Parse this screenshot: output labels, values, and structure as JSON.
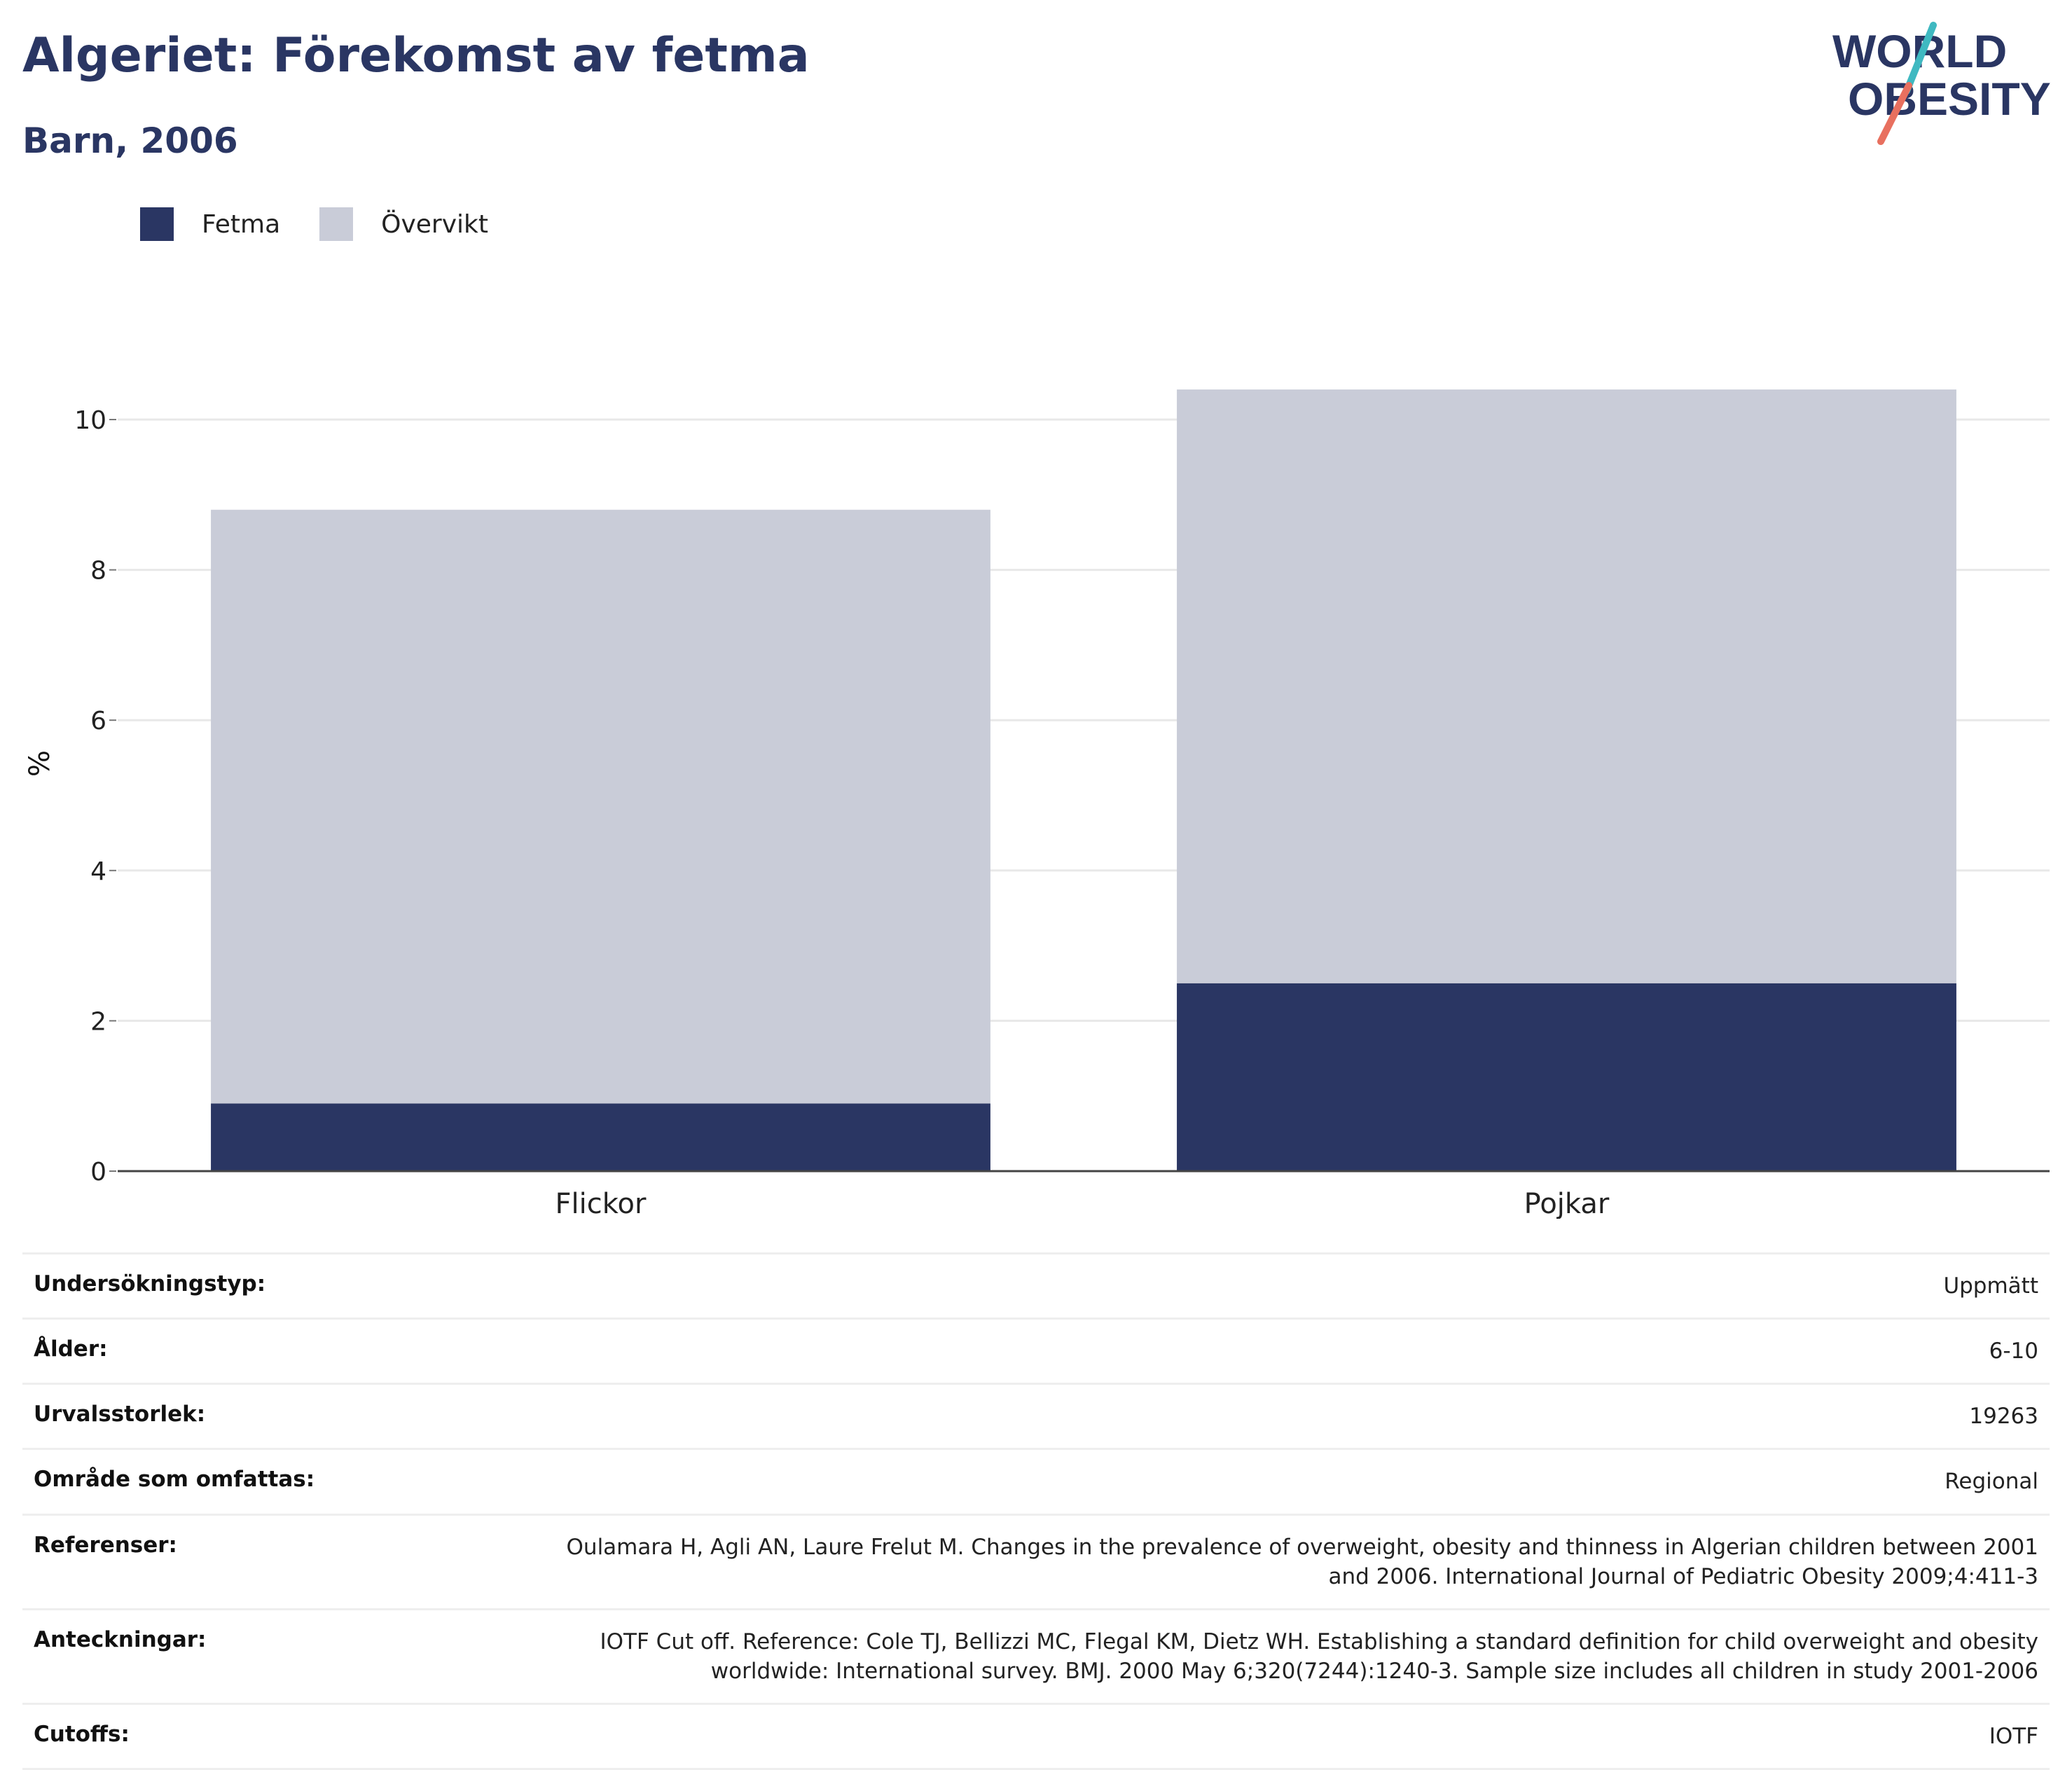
{
  "header": {
    "title": "Algeriet: Förekomst av fetma",
    "subtitle": "Barn, 2006"
  },
  "logo": {
    "line1": "WORLD",
    "line2": "OBESITY",
    "colors": {
      "text": "#2a3663",
      "slash_top": "#3fb9c1",
      "slash_bottom": "#e8705f"
    }
  },
  "colors": {
    "fetma": "#2a3663",
    "overvikt": "#c9ccd8",
    "grid": "#e8e8e8",
    "axis": "#444444"
  },
  "legend": [
    {
      "label": "Fetma",
      "color": "#2a3663"
    },
    {
      "label": "Övervikt",
      "color": "#c9ccd8"
    }
  ],
  "chart_data": {
    "type": "bar",
    "stacked": true,
    "categories": [
      "Flickor",
      "Pojkar"
    ],
    "series": [
      {
        "name": "Fetma",
        "values": [
          0.9,
          2.5
        ]
      },
      {
        "name": "Övervikt",
        "values": [
          7.9,
          7.9
        ]
      }
    ],
    "totals": [
      8.8,
      10.4
    ],
    "ylabel": "%",
    "xlabel": "",
    "ylim": [
      0,
      10.5
    ],
    "yticks": [
      0,
      2,
      4,
      6,
      8,
      10
    ],
    "grid": true,
    "legend_position": "top-left"
  },
  "details": [
    {
      "label": "Undersökningstyp:",
      "value": "Uppmätt"
    },
    {
      "label": "Ålder:",
      "value": "6-10"
    },
    {
      "label": "Urvalsstorlek:",
      "value": "19263"
    },
    {
      "label": "Område som omfattas:",
      "value": "Regional"
    },
    {
      "label": "Referenser:",
      "value": "Oulamara H, Agli AN, Laure Frelut M. Changes in the prevalence of overweight, obesity and thinness in Algerian children between 2001 and 2006. International Journal of Pediatric Obesity 2009;4:411-3"
    },
    {
      "label": "Anteckningar:",
      "value": "IOTF Cut off. Reference: Cole TJ, Bellizzi MC, Flegal KM, Dietz WH. Establishing a standard definition for child overweight and obesity worldwide: International survey. BMJ. 2000 May 6;320(7244):1240-3. Sample size includes all children in study 2001-2006"
    },
    {
      "label": "Cutoffs:",
      "value": "IOTF"
    }
  ]
}
